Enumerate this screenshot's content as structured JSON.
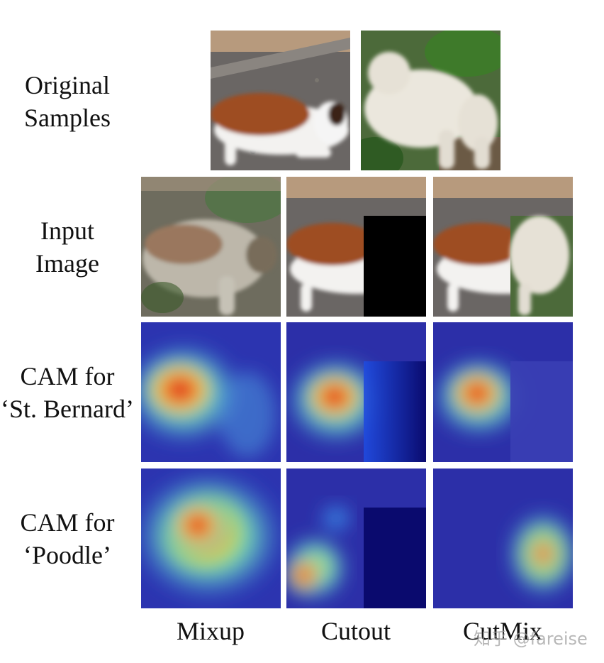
{
  "rows": [
    {
      "label_line1": "Original",
      "label_line2": "Samples"
    },
    {
      "label_line1": "Input",
      "label_line2": "Image"
    },
    {
      "label_line1": "CAM for",
      "label_line2": "‘St. Bernard’"
    },
    {
      "label_line1": "CAM for",
      "label_line2": "‘Poodle’"
    }
  ],
  "columns": [
    "Mixup",
    "Cutout",
    "CutMix"
  ],
  "watermark": "知乎 @fareise",
  "colors": {
    "st_bernard_brown": "#9a4a22",
    "dog_white": "#f1f0ee",
    "poodle_cream": "#e6e1d6",
    "ground": "#5e5b58",
    "foliage": "#3b6e2c",
    "cutout_black": "#000000",
    "cam_background": "#2c2fa8",
    "cam_hot": "#e8261a"
  }
}
